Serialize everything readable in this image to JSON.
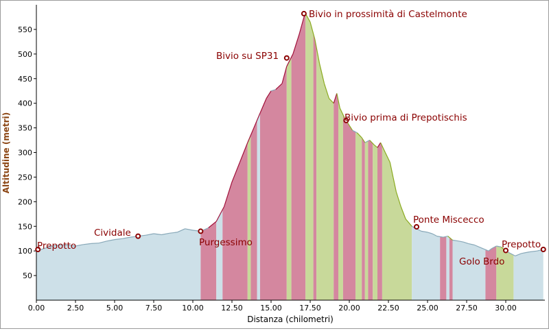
{
  "chart_data": {
    "type": "area",
    "title": "",
    "xlabel": "Distanza (chilometri)",
    "ylabel": "Altitudine (metri)",
    "xlim": [
      0,
      32.5
    ],
    "ylim": [
      0,
      600
    ],
    "x_ticks": [
      "0.00",
      "2.50",
      "5.00",
      "7.50",
      "10.00",
      "12.50",
      "15.00",
      "17.50",
      "20.00",
      "22.50",
      "25.00",
      "27.50",
      "30.00"
    ],
    "x_tick_values": [
      0,
      2.5,
      5,
      7.5,
      10,
      12.5,
      15,
      17.5,
      20,
      22.5,
      25,
      27.5,
      30
    ],
    "y_ticks": [
      "50",
      "100",
      "150",
      "200",
      "250",
      "300",
      "350",
      "400",
      "450",
      "500",
      "550"
    ],
    "y_tick_values": [
      50,
      100,
      150,
      200,
      250,
      300,
      350,
      400,
      450,
      500,
      550
    ],
    "series": [
      {
        "x": [
          0,
          0.5,
          1,
          1.5,
          2,
          2.5,
          3,
          3.5,
          4,
          4.5,
          5,
          5.5,
          6,
          6.5,
          7,
          7.5,
          8,
          8.5,
          9,
          9.5,
          10,
          10.5,
          11,
          11.5,
          12,
          12.5,
          13,
          13.5,
          13.9,
          14.3,
          14.7,
          15,
          15.3,
          15.7,
          16,
          16.4,
          16.8,
          17.1,
          17.2,
          17.5,
          17.8,
          18.1,
          18.4,
          18.7,
          19,
          19.2,
          19.4,
          19.7,
          20,
          20.2,
          20.5,
          20.8,
          21,
          21.3,
          21.6,
          21.8,
          22,
          22.3,
          22.6,
          22.8,
          23,
          23.3,
          23.6,
          24,
          24.3,
          24.6,
          25,
          25.3,
          25.6,
          26,
          26.3,
          26.6,
          27,
          27.3,
          27.6,
          28,
          28.3,
          28.6,
          28.9,
          29.1,
          29.4,
          29.7,
          30,
          30.3,
          30.6,
          31,
          31.5,
          32,
          32.4
        ],
        "y": [
          100,
          105,
          110,
          112,
          112,
          110,
          113,
          115,
          116,
          120,
          123,
          125,
          128,
          130,
          132,
          135,
          133,
          136,
          138,
          145,
          142,
          140,
          147,
          160,
          190,
          240,
          280,
          320,
          350,
          380,
          410,
          425,
          428,
          440,
          475,
          500,
          540,
          575,
          582,
          565,
          530,
          480,
          440,
          410,
          400,
          420,
          390,
          370,
          355,
          345,
          340,
          330,
          320,
          325,
          315,
          310,
          320,
          300,
          280,
          250,
          220,
          190,
          165,
          150,
          145,
          140,
          138,
          135,
          130,
          128,
          130,
          122,
          120,
          118,
          115,
          112,
          108,
          104,
          100,
          105,
          110,
          108,
          100,
          95,
          90,
          95,
          98,
          100,
          103
        ],
        "bands": [
          {
            "x0": 0,
            "x1": 10.5,
            "color": "#cde0e8"
          },
          {
            "x0": 10.5,
            "x1": 11.5,
            "color": "#d4879f"
          },
          {
            "x0": 11.5,
            "x1": 11.9,
            "color": "#cde0e8"
          },
          {
            "x0": 11.9,
            "x1": 13.5,
            "color": "#d4879f"
          },
          {
            "x0": 13.5,
            "x1": 13.7,
            "color": "#c8d99a"
          },
          {
            "x0": 13.7,
            "x1": 14.1,
            "color": "#d4879f"
          },
          {
            "x0": 14.1,
            "x1": 14.3,
            "color": "#cde0e8"
          },
          {
            "x0": 14.3,
            "x1": 16.0,
            "color": "#d4879f"
          },
          {
            "x0": 16.0,
            "x1": 16.3,
            "color": "#c8d99a"
          },
          {
            "x0": 16.3,
            "x1": 17.2,
            "color": "#d4879f"
          },
          {
            "x0": 17.2,
            "x1": 17.7,
            "color": "#c8d99a"
          },
          {
            "x0": 17.7,
            "x1": 17.9,
            "color": "#d4879f"
          },
          {
            "x0": 17.9,
            "x1": 19.0,
            "color": "#c8d99a"
          },
          {
            "x0": 19.0,
            "x1": 19.3,
            "color": "#d4879f"
          },
          {
            "x0": 19.3,
            "x1": 19.6,
            "color": "#c8d99a"
          },
          {
            "x0": 19.6,
            "x1": 20.4,
            "color": "#d4879f"
          },
          {
            "x0": 20.4,
            "x1": 20.8,
            "color": "#c8d99a"
          },
          {
            "x0": 20.8,
            "x1": 21.0,
            "color": "#d4879f"
          },
          {
            "x0": 21.0,
            "x1": 21.2,
            "color": "#c8d99a"
          },
          {
            "x0": 21.2,
            "x1": 21.5,
            "color": "#d4879f"
          },
          {
            "x0": 21.5,
            "x1": 21.8,
            "color": "#c8d99a"
          },
          {
            "x0": 21.8,
            "x1": 22.1,
            "color": "#d4879f"
          },
          {
            "x0": 22.1,
            "x1": 24.0,
            "color": "#c8d99a"
          },
          {
            "x0": 24.0,
            "x1": 25.8,
            "color": "#cde0e8"
          },
          {
            "x0": 25.8,
            "x1": 26.2,
            "color": "#d4879f"
          },
          {
            "x0": 26.2,
            "x1": 26.4,
            "color": "#cde0e8"
          },
          {
            "x0": 26.4,
            "x1": 26.6,
            "color": "#d4879f"
          },
          {
            "x0": 26.6,
            "x1": 28.7,
            "color": "#cde0e8"
          },
          {
            "x0": 28.7,
            "x1": 29.4,
            "color": "#d4879f"
          },
          {
            "x0": 29.4,
            "x1": 30.5,
            "color": "#c8d99a"
          },
          {
            "x0": 30.5,
            "x1": 32.4,
            "color": "#cde0e8"
          }
        ]
      }
    ],
    "annotations": [
      {
        "label": "Prepotto",
        "x": 0.1,
        "y": 103,
        "tx": 53,
        "ty": 362
      },
      {
        "label": "Cividale",
        "x": 6.5,
        "y": 130,
        "tx": 136,
        "ty": 343
      },
      {
        "label": "Purgessimo",
        "x": 10.5,
        "y": 140,
        "tx": 289,
        "ty": 357
      },
      {
        "label": "Bivio su SP31",
        "x": 16.0,
        "y": 492,
        "tx": 314,
        "ty": 85
      },
      {
        "label": "Bivio in prossimità di Castelmonte",
        "x": 17.1,
        "y": 582,
        "tx": 449,
        "ty": 24
      },
      {
        "label": "Bivio prima di Prepotischis",
        "x": 19.8,
        "y": 365,
        "tx": 501,
        "ty": 175
      },
      {
        "label": "Ponte Miscecco",
        "x": 24.3,
        "y": 149,
        "tx": 601,
        "ty": 324
      },
      {
        "label": "Golo Brdo",
        "x": 30.0,
        "y": 101,
        "tx": 668,
        "ty": 385
      },
      {
        "label": "Prepotto",
        "x": 32.4,
        "y": 103,
        "tx": 730,
        "ty": 360
      }
    ],
    "colors": {
      "line_up": "#a0103a",
      "line_down": "#8aaa20",
      "line_flat": "#88a8b8",
      "marker": "#8a0000",
      "axis": "#000000",
      "ytick_text": "#000000",
      "ylabel": "#8b4513"
    }
  }
}
